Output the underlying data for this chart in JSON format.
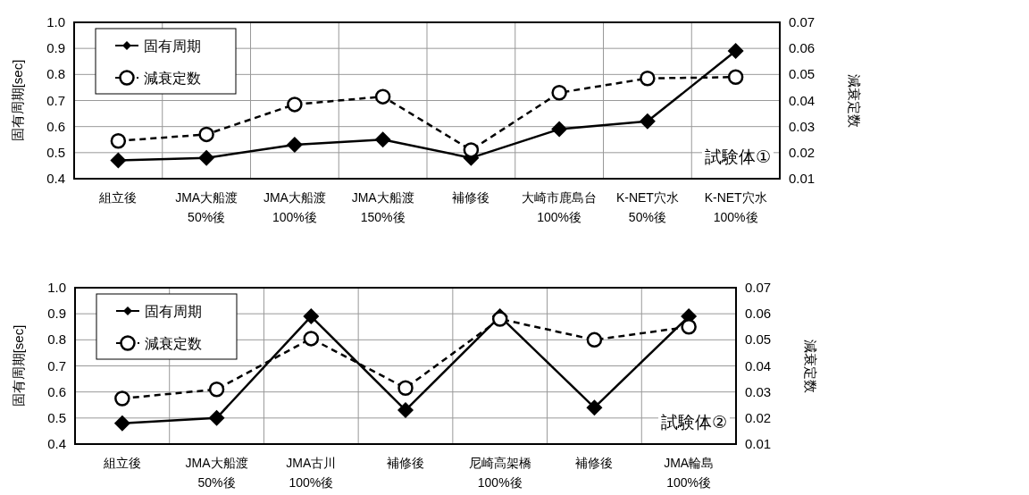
{
  "chart_data": [
    {
      "type": "line",
      "categories": [
        "組立後",
        "JMA大船渡\n50%後",
        "JMA大船渡\n100%後",
        "JMA大船渡\n150%後",
        "補修後",
        "大崎市鹿島台\n100%後",
        "K-NET穴水\n50%後",
        "K-NET穴水\n100%後"
      ],
      "ylabel": "固有周期[sec]",
      "y2label": "減衰定数",
      "ylim": [
        0.4,
        1.0
      ],
      "yticks": [
        0.4,
        0.5,
        0.6,
        0.7,
        0.8,
        0.9,
        {
          "value": 1.0,
          "label": "1.0"
        }
      ],
      "y2lim": [
        0.01,
        0.07
      ],
      "y2ticks": [
        0.01,
        0.02,
        0.03,
        0.04,
        0.05,
        0.06,
        0.07
      ],
      "grid": true,
      "legend": "top left",
      "annotations": [
        "試験体①"
      ],
      "series": [
        {
          "name": "固有周期",
          "color": "#000000",
          "marker": "diamond",
          "line_style": "solid",
          "values": [
            0.47,
            0.48,
            0.53,
            0.55,
            0.48,
            0.59,
            0.62,
            0.89
          ]
        },
        {
          "name": "減衰定数",
          "color": "#000000",
          "marker": "circle",
          "line_style": "dashed",
          "axis": "y2",
          "values": [
            0.0245,
            0.027,
            0.0385,
            0.0415,
            0.021,
            0.043,
            0.0485,
            0.049
          ]
        }
      ]
    },
    {
      "type": "line",
      "categories": [
        "組立後",
        "JMA大船渡\n50%後",
        "JMA古川\n100%後",
        "補修後",
        "尼崎高架橋\n100%後",
        "補修後",
        "JMA輪島\n100%後"
      ],
      "ylabel": "固有周期[sec]",
      "y2label": "減衰定数",
      "ylim": [
        0.4,
        1.0
      ],
      "yticks": [
        0.4,
        0.5,
        0.6,
        0.7,
        0.8,
        0.9,
        {
          "value": 1.0,
          "label": "1.0"
        }
      ],
      "y2lim": [
        0.01,
        0.07
      ],
      "y2ticks": [
        0.01,
        0.02,
        0.03,
        0.04,
        0.05,
        0.06,
        0.07
      ],
      "grid": true,
      "legend": "top left",
      "annotations": [
        "試験体②"
      ],
      "series": [
        {
          "name": "固有周期",
          "color": "#000000",
          "marker": "diamond",
          "line_style": "solid",
          "values": [
            0.48,
            0.5,
            0.89,
            0.53,
            0.89,
            0.54,
            0.89
          ]
        },
        {
          "name": "減衰定数",
          "color": "#000000",
          "marker": "circle",
          "line_style": "dashed",
          "axis": "y2",
          "values": [
            0.0275,
            0.031,
            0.0505,
            0.0315,
            0.058,
            0.05,
            0.055
          ]
        }
      ]
    }
  ]
}
